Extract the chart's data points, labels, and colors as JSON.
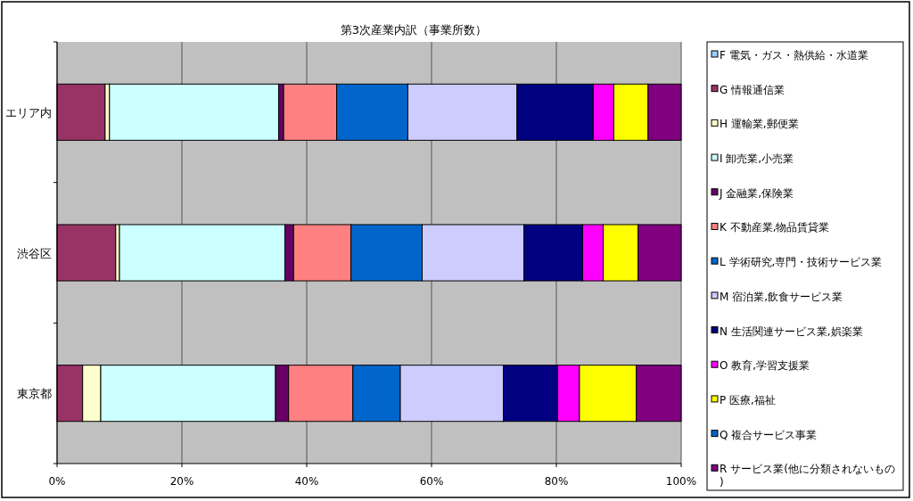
{
  "chart_data": {
    "type": "bar",
    "orientation": "horizontal",
    "stacked": true,
    "title": "第3次産業内訳（事業所数）",
    "categories": [
      "エリア内",
      "渋谷区",
      "東京都"
    ],
    "xlim": [
      0,
      100
    ],
    "xticks": [
      {
        "value": 0,
        "label": "0%"
      },
      {
        "value": 20,
        "label": "20%"
      },
      {
        "value": 40,
        "label": "40%"
      },
      {
        "value": 60,
        "label": "60%"
      },
      {
        "value": 80,
        "label": "80%"
      },
      {
        "value": 100,
        "label": "100%"
      }
    ],
    "grid": "x",
    "legend": "right",
    "series": [
      {
        "name": "F 電気・ガス・熱供給・水道業",
        "color": "#99ccff",
        "values": [
          0,
          0,
          0
        ]
      },
      {
        "name": "G 情報通信業",
        "color": "#993366",
        "values": [
          7.7,
          9.4,
          4.1
        ]
      },
      {
        "name": "H 運輸業,郵便業",
        "color": "#ffffcc",
        "values": [
          0.7,
          0.6,
          2.9
        ]
      },
      {
        "name": "I 卸売業,小売業",
        "color": "#ccffff",
        "values": [
          27.1,
          26.5,
          28.0
        ]
      },
      {
        "name": "J 金融業,保険業",
        "color": "#660066",
        "values": [
          0.8,
          1.4,
          2.1
        ]
      },
      {
        "name": "K 不動産業,物品賃貸業",
        "color": "#ff8080",
        "values": [
          8.5,
          9.2,
          10.3
        ]
      },
      {
        "name": "L 学術研究,専門・技術サービス業",
        "color": "#0066cc",
        "values": [
          11.4,
          11.4,
          7.6
        ]
      },
      {
        "name": "M 宿泊業,飲食サービス業",
        "color": "#ccccff",
        "values": [
          17.5,
          16.3,
          16.5
        ]
      },
      {
        "name": "N 生活関連サービス業,娯楽業",
        "color": "#000080",
        "values": [
          12.2,
          9.4,
          8.7
        ]
      },
      {
        "name": "O 教育,学習支援業",
        "color": "#ff00ff",
        "values": [
          3.3,
          3.3,
          3.5
        ]
      },
      {
        "name": "P 医療,福祉",
        "color": "#ffff00",
        "values": [
          5.5,
          5.6,
          9.1
        ]
      },
      {
        "name": "Q 複合サービス事業",
        "color": "#0066cc",
        "values": [
          0,
          0,
          0
        ]
      },
      {
        "name": "R サービス業(他に分類されないもの)",
        "color": "#800080",
        "values": [
          5.3,
          6.9,
          7.2
        ]
      }
    ]
  }
}
